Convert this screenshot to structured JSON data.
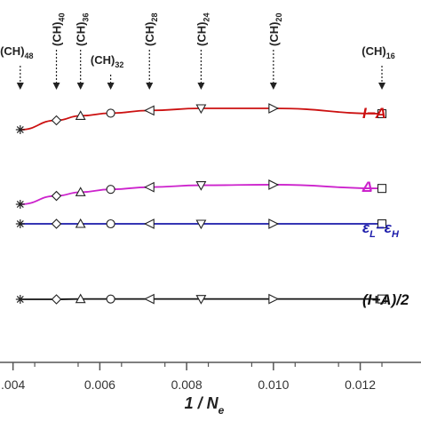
{
  "chart_data": {
    "type": "line",
    "xlabel": {
      "main": "1 / N",
      "sub": "e"
    },
    "xlim": [
      0.0037,
      0.0134
    ],
    "xticks": [
      {
        "value": 0.004,
        "label": ".004"
      },
      {
        "value": 0.006,
        "label": "0.006"
      },
      {
        "value": 0.008,
        "label": "0.008"
      },
      {
        "value": 0.01,
        "label": "0.010"
      },
      {
        "value": 0.012,
        "label": "0.012"
      }
    ],
    "x": [
      0.004167,
      0.005,
      0.005556,
      0.00625,
      0.007143,
      0.008333,
      0.01,
      0.0125
    ],
    "markers": [
      "asterisk",
      "diamond",
      "triangle-up",
      "circle",
      "triangle-left",
      "triangle-down",
      "triangle-right",
      "square"
    ],
    "molecules": [
      {
        "base": "(CH)",
        "sub": "48",
        "x": 0.004167
      },
      {
        "base": "(CH)",
        "sub": "40",
        "x": 0.005
      },
      {
        "base": "(CH)",
        "sub": "36",
        "x": 0.005556
      },
      {
        "base": "(CH)",
        "sub": "32",
        "x": 0.00625
      },
      {
        "base": "(CH)",
        "sub": "28",
        "x": 0.007143
      },
      {
        "base": "(CH)",
        "sub": "24",
        "x": 0.008333
      },
      {
        "base": "(CH)",
        "sub": "20",
        "x": 0.01
      },
      {
        "base": "(CH)",
        "sub": "16",
        "x": 0.0125
      }
    ],
    "series": [
      {
        "name": "I−A",
        "label_parts": [
          {
            "t": "I−A"
          }
        ],
        "color": "#cc1111",
        "values": [
          0.92,
          0.955,
          0.972,
          0.982,
          0.992,
          1.0,
          1.0,
          0.98
        ]
      },
      {
        "name": "Δ",
        "label_parts": [
          {
            "t": "Δ"
          }
        ],
        "color": "#cc22cc",
        "values": [
          0.8,
          0.845,
          0.865,
          0.88,
          0.892,
          0.902,
          0.905,
          0.885
        ]
      },
      {
        "name": "εL−εH",
        "label_parts": [
          {
            "t": "ε"
          },
          {
            "t": "L",
            "sub": true
          },
          {
            "t": "−ε"
          },
          {
            "t": "H",
            "sub": true
          }
        ],
        "color": "#1a1aaa",
        "values": [
          0.75,
          0.75,
          0.75,
          0.75,
          0.75,
          0.75,
          0.75,
          0.75
        ]
      },
      {
        "name": "(I+A)/2",
        "label_parts": [
          {
            "t": "(I+A)/2"
          }
        ],
        "color": "#111111",
        "values": [
          0.5,
          0.5,
          0.502,
          0.502,
          0.502,
          0.502,
          0.502,
          0.502
        ]
      }
    ],
    "grid": false,
    "legend": "right"
  }
}
